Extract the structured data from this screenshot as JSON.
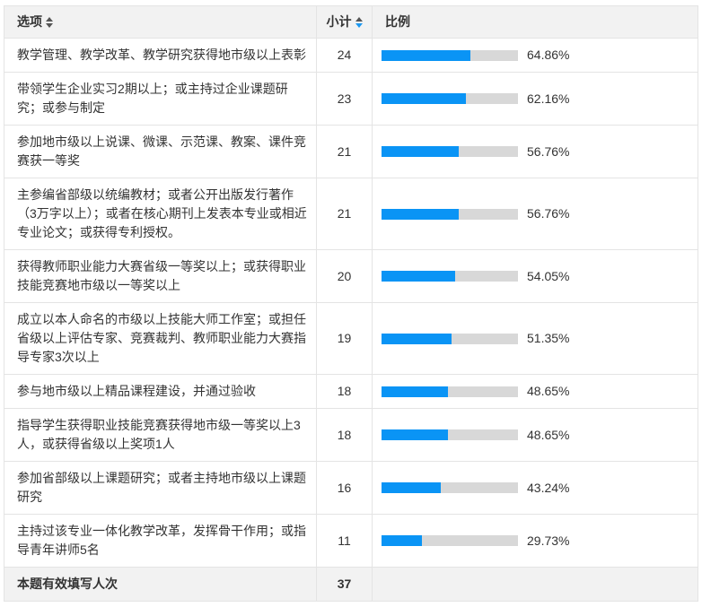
{
  "table": {
    "columns": [
      {
        "label": "选项",
        "sortable": true,
        "sort_state": "none"
      },
      {
        "label": "小计",
        "sortable": true,
        "sort_state": "desc"
      },
      {
        "label": "比例",
        "sortable": false,
        "sort_state": null
      }
    ],
    "rows": [
      {
        "option": "教学管理、教学改革、教学研究获得地市级以上表彰",
        "count": "24",
        "percent": 64.86,
        "percent_label": "64.86%"
      },
      {
        "option": "带领学生企业实习2期以上；或主持过企业课题研究；或参与制定",
        "count": "23",
        "percent": 62.16,
        "percent_label": "62.16%"
      },
      {
        "option": "参加地市级以上说课、微课、示范课、教案、课件竞赛获一等奖",
        "count": "21",
        "percent": 56.76,
        "percent_label": "56.76%"
      },
      {
        "option": "主参编省部级以统编教材；或者公开出版发行著作（3万字以上）；或者在核心期刊上发表本专业或相近专业论文；或获得专利授权。",
        "count": "21",
        "percent": 56.76,
        "percent_label": "56.76%"
      },
      {
        "option": "获得教师职业能力大赛省级一等奖以上；或获得职业技能竞赛地市级以一等奖以上",
        "count": "20",
        "percent": 54.05,
        "percent_label": "54.05%"
      },
      {
        "option": "成立以本人命名的市级以上技能大师工作室；或担任省级以上评估专家、竞赛裁判、教师职业能力大赛指导专家3次以上",
        "count": "19",
        "percent": 51.35,
        "percent_label": "51.35%"
      },
      {
        "option": "参与地市级以上精品课程建设，并通过验收",
        "count": "18",
        "percent": 48.65,
        "percent_label": "48.65%"
      },
      {
        "option": "指导学生获得职业技能竞赛获得地市级一等奖以上3人，或获得省级以上奖项1人",
        "count": "18",
        "percent": 48.65,
        "percent_label": "48.65%"
      },
      {
        "option": "参加省部级以上课题研究；或者主持地市级以上课题研究",
        "count": "16",
        "percent": 43.24,
        "percent_label": "43.24%"
      },
      {
        "option": "主持过该专业一体化教学改革，发挥骨干作用；或指导青年讲师5名",
        "count": "11",
        "percent": 29.73,
        "percent_label": "29.73%"
      }
    ],
    "footer": {
      "label": "本题有效填写人次",
      "count": "37"
    }
  },
  "colors": {
    "bar_fill": "#0a94f5",
    "bar_track": "#d8d8d8",
    "sort_active": "#1c98f0",
    "header_bg": "#f2f2f2"
  },
  "chart_data": {
    "type": "bar",
    "orientation": "horizontal",
    "categories": [
      "教学管理、教学改革、教学研究获得地市级以上表彰",
      "带领学生企业实习2期以上；或主持过企业课题研究；或参与制定",
      "参加地市级以上说课、微课、示范课、教案、课件竞赛获一等奖",
      "主参编省部级以统编教材；或者公开出版发行著作（3万字以上）；或者在核心期刊上发表本专业或相近专业论文；或获得专利授权。",
      "获得教师职业能力大赛省级一等奖以上；或获得职业技能竞赛地市级以一等奖以上",
      "成立以本人命名的市级以上技能大师工作室；或担任省级以上评估专家、竞赛裁判、教师职业能力大赛指导专家3次以上",
      "参与地市级以上精品课程建设，并通过验收",
      "指导学生获得职业技能竞赛获得地市级一等奖以上3人，或获得省级以上奖项1人",
      "参加省部级以上课题研究；或者主持地市级以上课题研究",
      "主持过该专业一体化教学改革，发挥骨干作用；或指导青年讲师5名"
    ],
    "values": [
      24,
      23,
      21,
      21,
      20,
      19,
      18,
      18,
      16,
      11
    ],
    "percents": [
      64.86,
      62.16,
      56.76,
      56.76,
      54.05,
      51.35,
      48.65,
      48.65,
      43.24,
      29.73
    ],
    "total_respondents": 37,
    "title": "",
    "xlabel": "比例",
    "ylabel": "选项",
    "xlim": [
      0,
      100
    ],
    "grid": false,
    "legend": false
  }
}
